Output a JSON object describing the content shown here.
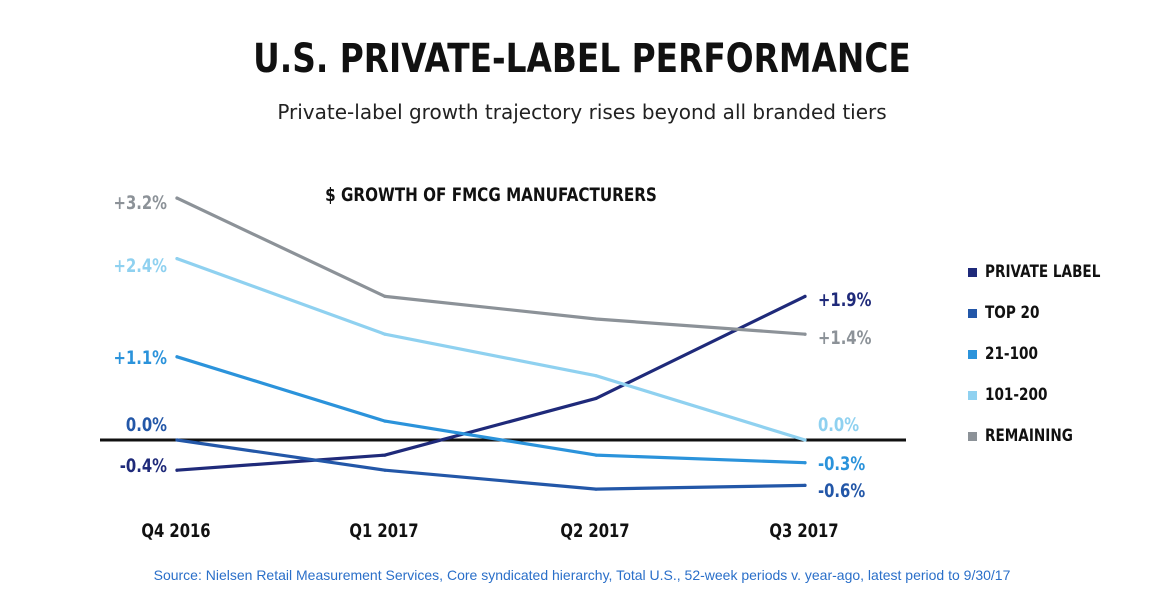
{
  "title": "U.S. PRIVATE-LABEL PERFORMANCE",
  "subtitle": "Private-label growth trajectory rises beyond all branded tiers",
  "source": "Source: Nielsen Retail Measurement Services, Core syndicated hierarchy, Total U.S., 52-week periods v. year-ago, latest period to 9/30/17",
  "chart_data": {
    "type": "line",
    "title": "$ GROWTH OF FMCG MANUFACTURERS",
    "xlabel": "",
    "ylabel": "",
    "categories": [
      "Q4 2016",
      "Q1 2017",
      "Q2 2017",
      "Q3 2017"
    ],
    "ylim": [
      -1.0,
      3.4
    ],
    "grid": false,
    "legend_position": "right",
    "series": [
      {
        "name": "PRIVATE LABEL",
        "color": "#1f2a7a",
        "values": [
          -0.4,
          -0.2,
          0.55,
          1.9
        ],
        "start_label": "-0.4%",
        "end_label": "+1.9%"
      },
      {
        "name": "TOP 20",
        "color": "#2357a8",
        "values": [
          0.0,
          -0.4,
          -0.65,
          -0.6
        ],
        "start_label": "0.0%",
        "end_label": "-0.6%"
      },
      {
        "name": "21-100",
        "color": "#2b93db",
        "values": [
          1.1,
          0.25,
          -0.2,
          -0.3
        ],
        "start_label": "+1.1%",
        "end_label": "-0.3%"
      },
      {
        "name": "101-200",
        "color": "#8fd1f0",
        "values": [
          2.4,
          1.4,
          0.85,
          0.0
        ],
        "start_label": "+2.4%",
        "end_label": "0.0%"
      },
      {
        "name": "REMAINING",
        "color": "#8c9298",
        "values": [
          3.2,
          1.9,
          1.6,
          1.4
        ],
        "start_label": "+3.2%",
        "end_label": "+1.4%"
      }
    ]
  }
}
